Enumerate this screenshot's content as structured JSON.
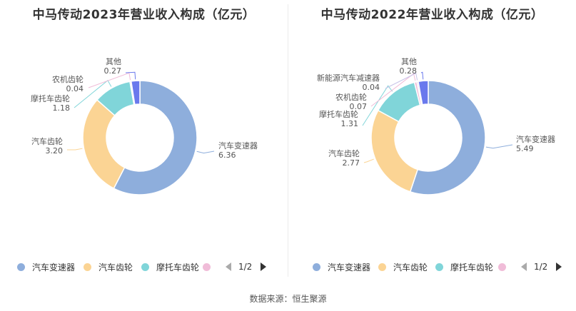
{
  "charts": [
    {
      "title": "中马传动2023年营业收入构成（亿元）",
      "legend": [
        "汽车变速器",
        "汽车齿轮",
        "摩托车齿轮",
        ""
      ],
      "pager": "1/2"
    },
    {
      "title": "中马传动2022年营业收入构成（亿元）",
      "legend": [
        "汽车变速器",
        "汽车齿轮",
        "摩托车齿轮",
        ""
      ],
      "pager": "1/2"
    }
  ],
  "source": "数据来源：恒生聚源",
  "colors": {
    "汽车变速器": "#8eaedc",
    "汽车齿轮": "#fbd494",
    "摩托车齿轮": "#80d5d9",
    "农机齿轮": "#f0bcd8",
    "新能源汽车减速器": "#c8c3e8",
    "其他": "#6a79ed"
  },
  "chart_data": [
    {
      "type": "pie",
      "title": "中马传动2023年营业收入构成（亿元）",
      "donut": true,
      "slices": [
        {
          "label": "汽车变速器",
          "value": 6.36,
          "display": "6.36"
        },
        {
          "label": "汽车齿轮",
          "value": 3.2,
          "display": "3.20"
        },
        {
          "label": "摩托车齿轮",
          "value": 1.18,
          "display": "1.18"
        },
        {
          "label": "农机齿轮",
          "value": 0.04,
          "display": "0.04"
        },
        {
          "label": "其他",
          "value": 0.27,
          "display": "0.27"
        }
      ]
    },
    {
      "type": "pie",
      "title": "中马传动2022年营业收入构成（亿元）",
      "donut": true,
      "slices": [
        {
          "label": "汽车变速器",
          "value": 5.49,
          "display": "5.49"
        },
        {
          "label": "汽车齿轮",
          "value": 2.77,
          "display": "2.77"
        },
        {
          "label": "摩托车齿轮",
          "value": 1.31,
          "display": "1.31"
        },
        {
          "label": "农机齿轮",
          "value": 0.07,
          "display": "0.07"
        },
        {
          "label": "新能源汽车减速器",
          "value": 0.04,
          "display": "0.04"
        },
        {
          "label": "其他",
          "value": 0.28,
          "display": "0.28"
        }
      ]
    }
  ]
}
